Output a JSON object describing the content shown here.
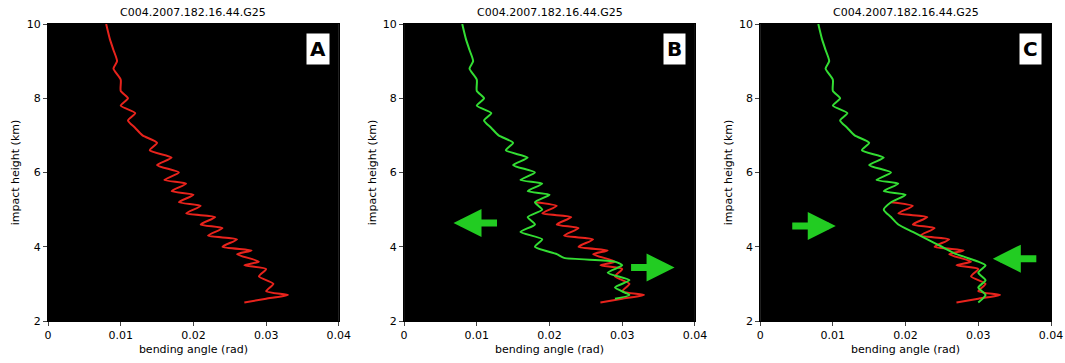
{
  "chart_data": [
    {
      "type": "line",
      "title": "C004.2007.182.16.44.G25",
      "panel": "A",
      "x_label": "bending angle (rad)",
      "y_label": "impact height (km)",
      "xlim": [
        0,
        0.04
      ],
      "xticks": [
        0,
        0.01,
        0.02,
        0.03,
        0.04
      ],
      "ylim": [
        2,
        10
      ],
      "yticks": [
        2,
        4,
        6,
        8,
        10
      ],
      "grid": false,
      "series": [
        {
          "color": "#e8231c",
          "x": [
            0.027,
            0.03,
            0.033,
            0.03,
            0.031,
            0.029,
            0.03,
            0.027,
            0.029,
            0.026,
            0.028,
            0.024,
            0.026,
            0.022,
            0.024,
            0.021,
            0.023,
            0.019,
            0.021,
            0.018,
            0.02,
            0.017,
            0.019,
            0.016,
            0.018,
            0.015,
            0.017,
            0.014,
            0.015,
            0.013,
            0.012,
            0.011,
            0.012,
            0.01,
            0.011,
            0.01,
            0.01,
            0.009,
            0.0095,
            0.009,
            0.0085,
            0.008
          ],
          "y": [
            2.5,
            2.6,
            2.7,
            2.8,
            3.0,
            3.2,
            3.4,
            3.5,
            3.6,
            3.8,
            3.9,
            4.0,
            4.2,
            4.3,
            4.5,
            4.6,
            4.8,
            4.9,
            5.1,
            5.2,
            5.4,
            5.5,
            5.7,
            5.8,
            6.0,
            6.2,
            6.4,
            6.6,
            6.8,
            7.0,
            7.2,
            7.4,
            7.6,
            7.8,
            8.0,
            8.2,
            8.5,
            8.8,
            9.0,
            9.3,
            9.6,
            10.0
          ]
        }
      ]
    },
    {
      "type": "line",
      "title": "C004.2007.182.16.44.G25",
      "panel": "B",
      "x_label": "bending angle (rad)",
      "y_label": "impact height (km)",
      "xlim": [
        0,
        0.04
      ],
      "xticks": [
        0,
        0.01,
        0.02,
        0.03,
        0.04
      ],
      "ylim": [
        2,
        10
      ],
      "yticks": [
        2,
        4,
        6,
        8,
        10
      ],
      "grid": false,
      "series": [
        {
          "color": "#e8231c",
          "x": [
            0.027,
            0.03,
            0.033,
            0.03,
            0.031,
            0.029,
            0.03,
            0.027,
            0.029,
            0.026,
            0.028,
            0.024,
            0.026,
            0.022,
            0.024,
            0.021,
            0.023,
            0.019,
            0.021,
            0.018
          ],
          "y": [
            2.5,
            2.6,
            2.7,
            2.8,
            3.0,
            3.2,
            3.4,
            3.5,
            3.6,
            3.8,
            3.9,
            4.0,
            4.2,
            4.3,
            4.5,
            4.6,
            4.8,
            4.9,
            5.1,
            5.2
          ]
        },
        {
          "color": "#33dd33",
          "x": [
            0.029,
            0.031,
            0.029,
            0.031,
            0.028,
            0.03,
            0.029,
            0.022,
            0.021,
            0.018,
            0.019,
            0.016,
            0.018,
            0.017,
            0.019,
            0.018,
            0.02,
            0.017,
            0.019,
            0.016,
            0.018,
            0.015,
            0.017,
            0.014,
            0.015,
            0.013,
            0.012,
            0.011,
            0.012,
            0.01,
            0.011,
            0.01,
            0.01,
            0.009,
            0.0095,
            0.009,
            0.0085,
            0.008
          ],
          "y": [
            2.6,
            2.7,
            2.9,
            3.1,
            3.3,
            3.5,
            3.6,
            3.7,
            3.8,
            4.0,
            4.2,
            4.4,
            4.6,
            4.8,
            5.0,
            5.2,
            5.4,
            5.5,
            5.7,
            5.8,
            6.0,
            6.2,
            6.4,
            6.6,
            6.8,
            7.0,
            7.2,
            7.4,
            7.6,
            7.8,
            8.0,
            8.2,
            8.5,
            8.8,
            9.0,
            9.3,
            9.6,
            10.0
          ]
        }
      ]
    },
    {
      "type": "line",
      "title": "C004.2007.182.16.44.G25",
      "panel": "C",
      "x_label": "bending angle (rad)",
      "y_label": "impact height (km)",
      "xlim": [
        0,
        0.04
      ],
      "xticks": [
        0,
        0.01,
        0.02,
        0.03,
        0.04
      ],
      "ylim": [
        2,
        10
      ],
      "yticks": [
        2,
        4,
        6,
        8,
        10
      ],
      "grid": false,
      "series": [
        {
          "color": "#e8231c",
          "x": [
            0.027,
            0.03,
            0.033,
            0.03,
            0.031,
            0.029,
            0.03,
            0.027,
            0.029,
            0.026,
            0.028,
            0.024,
            0.026,
            0.022,
            0.024,
            0.021,
            0.023,
            0.019,
            0.021,
            0.018
          ],
          "y": [
            2.5,
            2.6,
            2.7,
            2.8,
            3.0,
            3.2,
            3.4,
            3.5,
            3.6,
            3.8,
            3.9,
            4.0,
            4.2,
            4.3,
            4.5,
            4.6,
            4.8,
            4.9,
            5.1,
            5.2
          ]
        },
        {
          "color": "#33dd33",
          "x": [
            0.03,
            0.031,
            0.03,
            0.031,
            0.03,
            0.031,
            0.03,
            0.027,
            0.025,
            0.023,
            0.021,
            0.019,
            0.018,
            0.017,
            0.018,
            0.02,
            0.017,
            0.019,
            0.016,
            0.018,
            0.015,
            0.017,
            0.014,
            0.015,
            0.013,
            0.012,
            0.011,
            0.012,
            0.01,
            0.011,
            0.01,
            0.01,
            0.009,
            0.0095,
            0.009,
            0.0085,
            0.008
          ],
          "y": [
            2.5,
            2.7,
            2.9,
            3.1,
            3.3,
            3.5,
            3.6,
            3.8,
            4.0,
            4.2,
            4.4,
            4.6,
            4.8,
            5.0,
            5.2,
            5.4,
            5.5,
            5.7,
            5.8,
            6.0,
            6.2,
            6.4,
            6.6,
            6.8,
            7.0,
            7.2,
            7.4,
            7.6,
            7.8,
            8.0,
            8.2,
            8.5,
            8.8,
            9.0,
            9.3,
            9.6,
            10.0
          ]
        }
      ]
    }
  ]
}
